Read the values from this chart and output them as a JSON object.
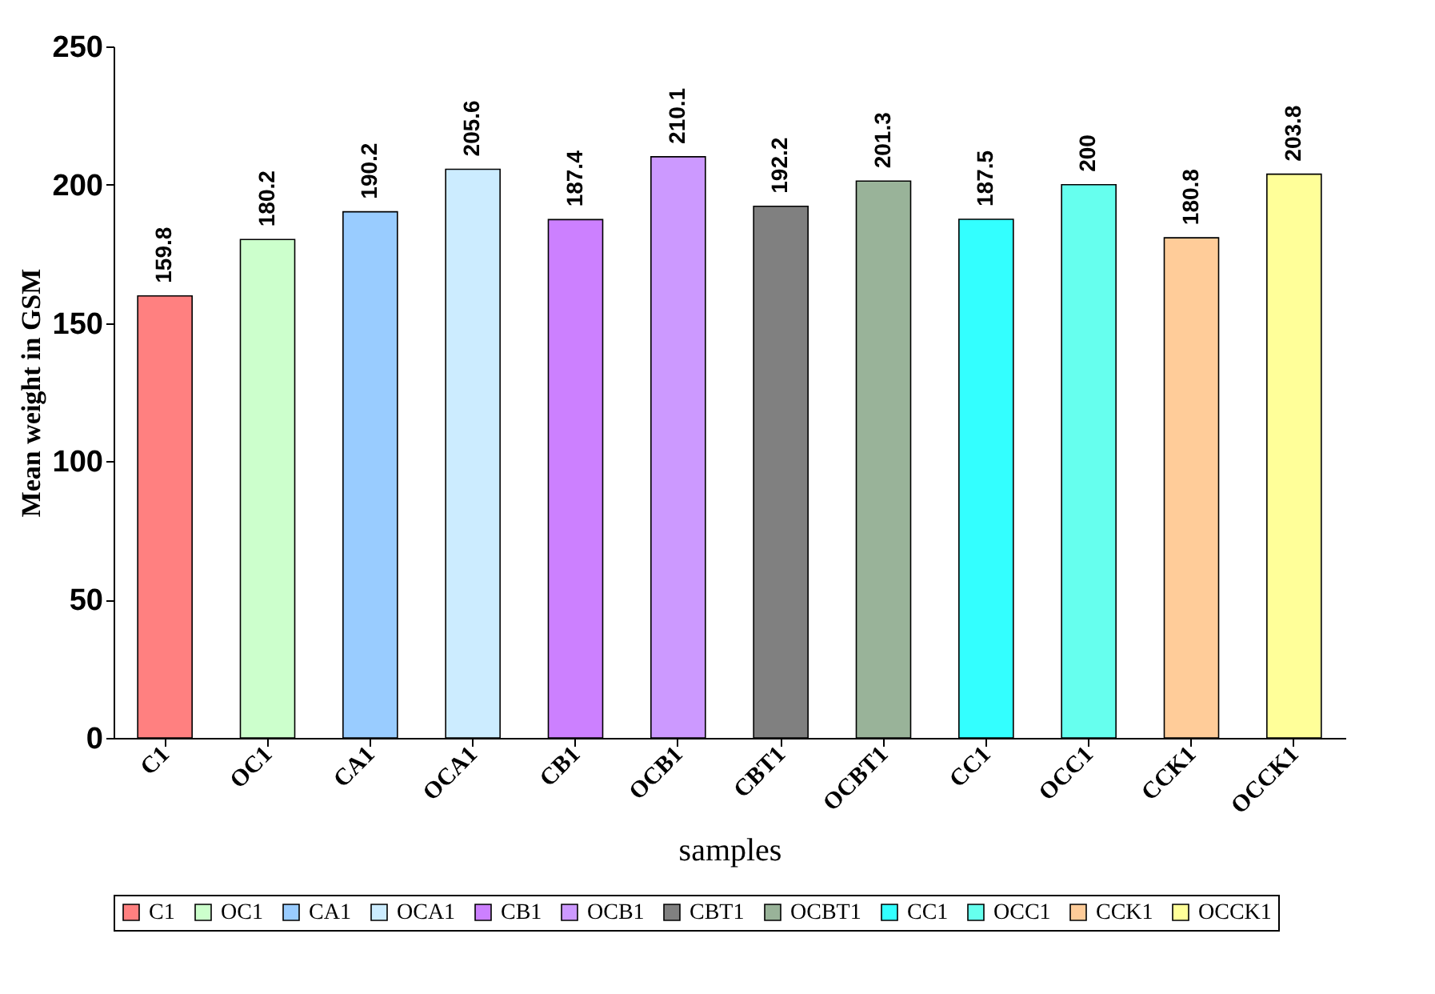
{
  "chart_data": {
    "type": "bar",
    "xlabel": "samples",
    "ylabel": "Mean weight in GSM",
    "stacked": true,
    "categories": [
      "C1",
      "OC1",
      "CA1",
      "OCA1",
      "CB1",
      "OCB1",
      "CBT1",
      "OCBT1",
      "CC1",
      "OCC1",
      "CCK1",
      "OCCK1"
    ],
    "series": [
      {
        "name": "C1",
        "color": "#ff8080",
        "values": [
          159.8,
          null,
          null,
          null,
          null,
          null,
          null,
          null,
          null,
          null,
          null,
          null
        ]
      },
      {
        "name": "OC1",
        "color": "#ccffcc",
        "values": [
          null,
          180.2,
          null,
          null,
          null,
          null,
          null,
          null,
          null,
          null,
          null,
          null
        ]
      },
      {
        "name": "CA1",
        "color": "#99ccff",
        "values": [
          null,
          null,
          190.2,
          null,
          null,
          null,
          null,
          null,
          null,
          null,
          null,
          null
        ]
      },
      {
        "name": "OCA1",
        "color": "#ccecff",
        "values": [
          null,
          null,
          null,
          205.6,
          null,
          null,
          null,
          null,
          null,
          null,
          null,
          null
        ]
      },
      {
        "name": "CB1",
        "color": "#cc80ff",
        "values": [
          null,
          null,
          null,
          null,
          187.4,
          null,
          null,
          null,
          null,
          null,
          null,
          null
        ]
      },
      {
        "name": "OCB1",
        "color": "#cc99ff",
        "values": [
          null,
          null,
          null,
          null,
          null,
          210.1,
          null,
          null,
          null,
          null,
          null,
          null
        ]
      },
      {
        "name": "CBT1",
        "color": "#808080",
        "values": [
          null,
          null,
          null,
          null,
          null,
          null,
          192.2,
          null,
          null,
          null,
          null,
          null
        ]
      },
      {
        "name": "OCBT1",
        "color": "#99b399",
        "values": [
          null,
          null,
          null,
          null,
          null,
          null,
          null,
          201.3,
          null,
          null,
          null,
          null
        ]
      },
      {
        "name": "CC1",
        "color": "#33ffff",
        "values": [
          null,
          null,
          null,
          null,
          null,
          null,
          null,
          null,
          187.5,
          null,
          null,
          null
        ]
      },
      {
        "name": "OCC1",
        "color": "#66ffee",
        "values": [
          null,
          null,
          null,
          null,
          null,
          null,
          null,
          null,
          null,
          200,
          null,
          null
        ]
      },
      {
        "name": "CCK1",
        "color": "#ffcc99",
        "values": [
          null,
          null,
          null,
          null,
          null,
          null,
          null,
          null,
          null,
          null,
          180.8,
          null
        ]
      },
      {
        "name": "OCCK1",
        "color": "#ffff99",
        "values": [
          null,
          null,
          null,
          null,
          null,
          null,
          null,
          null,
          null,
          null,
          null,
          203.8
        ]
      }
    ],
    "ylim": [
      0,
      250
    ],
    "yticks": [
      0,
      50,
      100,
      150,
      200,
      250
    ],
    "grid": false,
    "legend": "bottom",
    "data_labels": true
  }
}
